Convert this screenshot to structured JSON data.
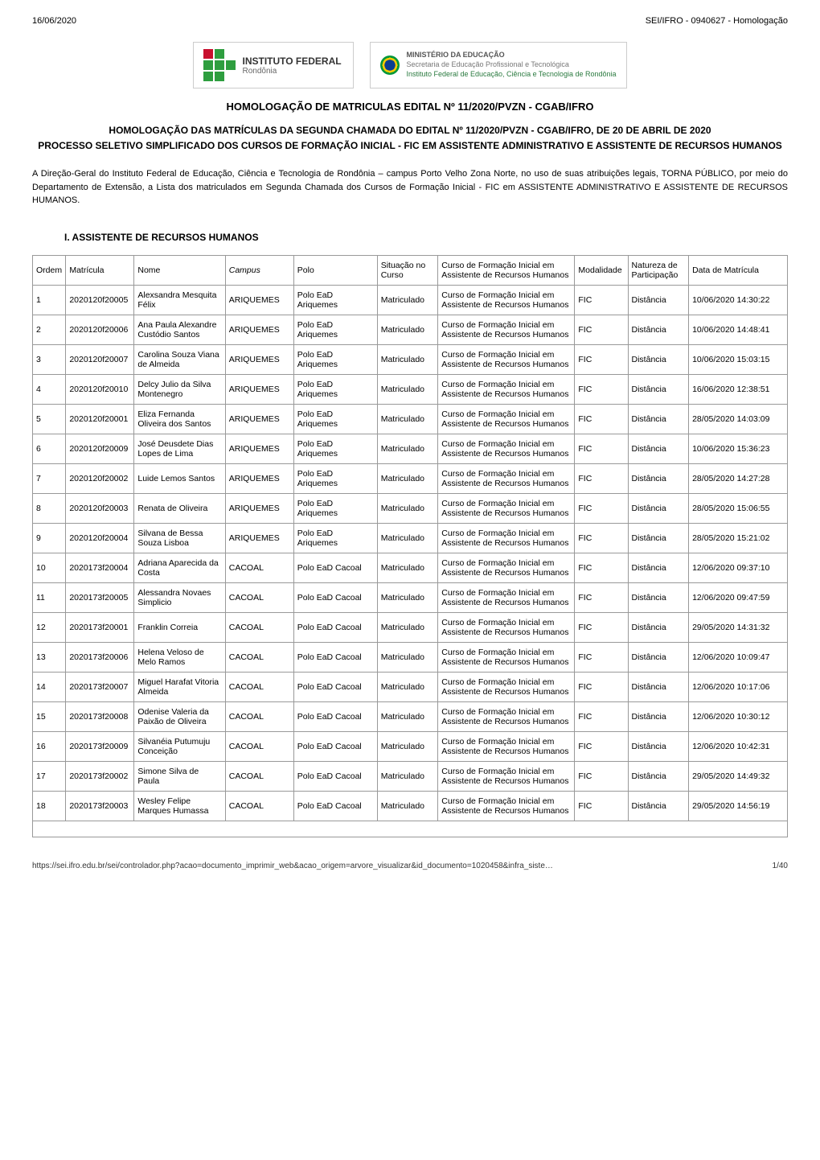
{
  "header": {
    "date": "16/06/2020",
    "doc_ref": "SEI/IFRO - 0940627 - Homologação"
  },
  "logos": {
    "instituto": {
      "name": "INSTITUTO FEDERAL",
      "region": "Rondônia"
    },
    "ministerio": {
      "title": "MINISTÉRIO DA EDUCAÇÃO",
      "line2": "Secretaria de Educação Profissional e Tecnológica",
      "line3": "Instituto Federal de Educação, Ciência e Tecnologia de Rondônia"
    }
  },
  "titles": {
    "main": "HOMOLOGAÇÃO DE MATRICULAS EDITAL Nº 11/2020/PVZN - CGAB/IFRO",
    "sub": "HOMOLOGAÇÃO DAS MATRÍCULAS DA SEGUNDA CHAMADA DO EDITAL Nº 11/2020/PVZN - CGAB/IFRO, DE 20 DE ABRIL DE 2020",
    "process": "PROCESSO SELETIVO SIMPLIFICADO DOS CURSOS DE FORMAÇÃO INICIAL - FIC EM ASSISTENTE ADMINISTRATIVO E ASSISTENTE DE RECURSOS HUMANOS"
  },
  "body_paragraph": "A Direção-Geral do Instituto Federal de Educação, Ciência e Tecnologia de Rondônia – campus Porto Velho Zona Norte, no uso de suas atribuições legais, TORNA PÚBLICO, por meio do Departamento de Extensão, a Lista dos matriculados em Segunda Chamada dos Cursos de Formação Inicial - FIC em ASSISTENTE ADMINISTRATIVO E ASSISTENTE DE RECURSOS HUMANOS.",
  "section_title": "I. ASSISTENTE DE RECURSOS HUMANOS",
  "table": {
    "headers": [
      "Ordem",
      "Matrícula",
      "Nome",
      "Campus",
      "Polo",
      "Situação no Curso",
      "Curso de Formação Inicial em Assistente de Recursos Humanos",
      "Modalidade",
      "Natureza de Participação",
      "Data de Matrícula"
    ],
    "curso_text": "Curso de Formação Inicial em Assistente de Recursos Humanos",
    "rows": [
      {
        "ordem": "1",
        "matricula": "2020120f20005",
        "nome": "Alexsandra Mesquita Félix",
        "campus": "ARIQUEMES",
        "polo": "Polo EaD Ariquemes",
        "situacao": "Matriculado",
        "modalidade": "FIC",
        "natureza": "Distância",
        "data": "10/06/2020 14:30:22"
      },
      {
        "ordem": "2",
        "matricula": "2020120f20006",
        "nome": "Ana Paula Alexandre Custódio Santos",
        "campus": "ARIQUEMES",
        "polo": "Polo EaD Ariquemes",
        "situacao": "Matriculado",
        "modalidade": "FIC",
        "natureza": "Distância",
        "data": "10/06/2020 14:48:41"
      },
      {
        "ordem": "3",
        "matricula": "2020120f20007",
        "nome": "Carolina Souza Viana de Almeida",
        "campus": "ARIQUEMES",
        "polo": "Polo EaD Ariquemes",
        "situacao": "Matriculado",
        "modalidade": "FIC",
        "natureza": "Distância",
        "data": "10/06/2020 15:03:15"
      },
      {
        "ordem": "4",
        "matricula": "2020120f20010",
        "nome": "Delcy Julio da Silva Montenegro",
        "campus": "ARIQUEMES",
        "polo": "Polo EaD Ariquemes",
        "situacao": "Matriculado",
        "modalidade": "FIC",
        "natureza": "Distância",
        "data": "16/06/2020 12:38:51"
      },
      {
        "ordem": "5",
        "matricula": "2020120f20001",
        "nome": "Eliza Fernanda Oliveira dos Santos",
        "campus": "ARIQUEMES",
        "polo": "Polo EaD Ariquemes",
        "situacao": "Matriculado",
        "modalidade": "FIC",
        "natureza": "Distância",
        "data": "28/05/2020 14:03:09"
      },
      {
        "ordem": "6",
        "matricula": "2020120f20009",
        "nome": "José Deusdete Dias Lopes de Lima",
        "campus": "ARIQUEMES",
        "polo": "Polo EaD Ariquemes",
        "situacao": "Matriculado",
        "modalidade": "FIC",
        "natureza": "Distância",
        "data": "10/06/2020 15:36:23"
      },
      {
        "ordem": "7",
        "matricula": "2020120f20002",
        "nome": "Luide Lemos Santos",
        "campus": "ARIQUEMES",
        "polo": "Polo EaD Ariquemes",
        "situacao": "Matriculado",
        "modalidade": "FIC",
        "natureza": "Distância",
        "data": "28/05/2020 14:27:28"
      },
      {
        "ordem": "8",
        "matricula": "2020120f20003",
        "nome": "Renata de Oliveira",
        "campus": "ARIQUEMES",
        "polo": "Polo EaD Ariquemes",
        "situacao": "Matriculado",
        "modalidade": "FIC",
        "natureza": "Distância",
        "data": "28/05/2020 15:06:55"
      },
      {
        "ordem": "9",
        "matricula": "2020120f20004",
        "nome": "Silvana de Bessa Souza Lisboa",
        "campus": "ARIQUEMES",
        "polo": "Polo EaD Ariquemes",
        "situacao": "Matriculado",
        "modalidade": "FIC",
        "natureza": "Distância",
        "data": "28/05/2020 15:21:02"
      },
      {
        "ordem": "10",
        "matricula": "2020173f20004",
        "nome": "Adriana Aparecida da Costa",
        "campus": "CACOAL",
        "polo": "Polo EaD Cacoal",
        "situacao": "Matriculado",
        "modalidade": "FIC",
        "natureza": "Distância",
        "data": "12/06/2020 09:37:10"
      },
      {
        "ordem": "11",
        "matricula": "2020173f20005",
        "nome": "Alessandra Novaes Simplicio",
        "campus": "CACOAL",
        "polo": "Polo EaD Cacoal",
        "situacao": "Matriculado",
        "modalidade": "FIC",
        "natureza": "Distância",
        "data": "12/06/2020 09:47:59"
      },
      {
        "ordem": "12",
        "matricula": "2020173f20001",
        "nome": "Franklin Correia",
        "campus": "CACOAL",
        "polo": "Polo EaD Cacoal",
        "situacao": "Matriculado",
        "modalidade": "FIC",
        "natureza": "Distância",
        "data": "29/05/2020 14:31:32"
      },
      {
        "ordem": "13",
        "matricula": "2020173f20006",
        "nome": "Helena Veloso de Melo Ramos",
        "campus": "CACOAL",
        "polo": "Polo EaD Cacoal",
        "situacao": "Matriculado",
        "modalidade": "FIC",
        "natureza": "Distância",
        "data": "12/06/2020 10:09:47"
      },
      {
        "ordem": "14",
        "matricula": "2020173f20007",
        "nome": "Miguel Harafat Vitoria Almeida",
        "campus": "CACOAL",
        "polo": "Polo EaD Cacoal",
        "situacao": "Matriculado",
        "modalidade": "FIC",
        "natureza": "Distância",
        "data": "12/06/2020 10:17:06"
      },
      {
        "ordem": "15",
        "matricula": "2020173f20008",
        "nome": "Odenise Valeria da Paixão de Oliveira",
        "campus": "CACOAL",
        "polo": "Polo EaD Cacoal",
        "situacao": "Matriculado",
        "modalidade": "FIC",
        "natureza": "Distância",
        "data": "12/06/2020 10:30:12"
      },
      {
        "ordem": "16",
        "matricula": "2020173f20009",
        "nome": "Silvanéia Putumuju Conceição",
        "campus": "CACOAL",
        "polo": "Polo EaD Cacoal",
        "situacao": "Matriculado",
        "modalidade": "FIC",
        "natureza": "Distância",
        "data": "12/06/2020 10:42:31"
      },
      {
        "ordem": "17",
        "matricula": "2020173f20002",
        "nome": "Simone Silva de Paula",
        "campus": "CACOAL",
        "polo": "Polo EaD Cacoal",
        "situacao": "Matriculado",
        "modalidade": "FIC",
        "natureza": "Distância",
        "data": "29/05/2020 14:49:32"
      },
      {
        "ordem": "18",
        "matricula": "2020173f20003",
        "nome": "Wesley Felipe Marques Humassa",
        "campus": "CACOAL",
        "polo": "Polo EaD Cacoal",
        "situacao": "Matriculado",
        "modalidade": "FIC",
        "natureza": "Distância",
        "data": "29/05/2020 14:56:19"
      }
    ]
  },
  "footer": {
    "url": "https://sei.ifro.edu.br/sei/controlador.php?acao=documento_imprimir_web&acao_origem=arvore_visualizar&id_documento=1020458&infra_siste…",
    "page": "1/40"
  }
}
